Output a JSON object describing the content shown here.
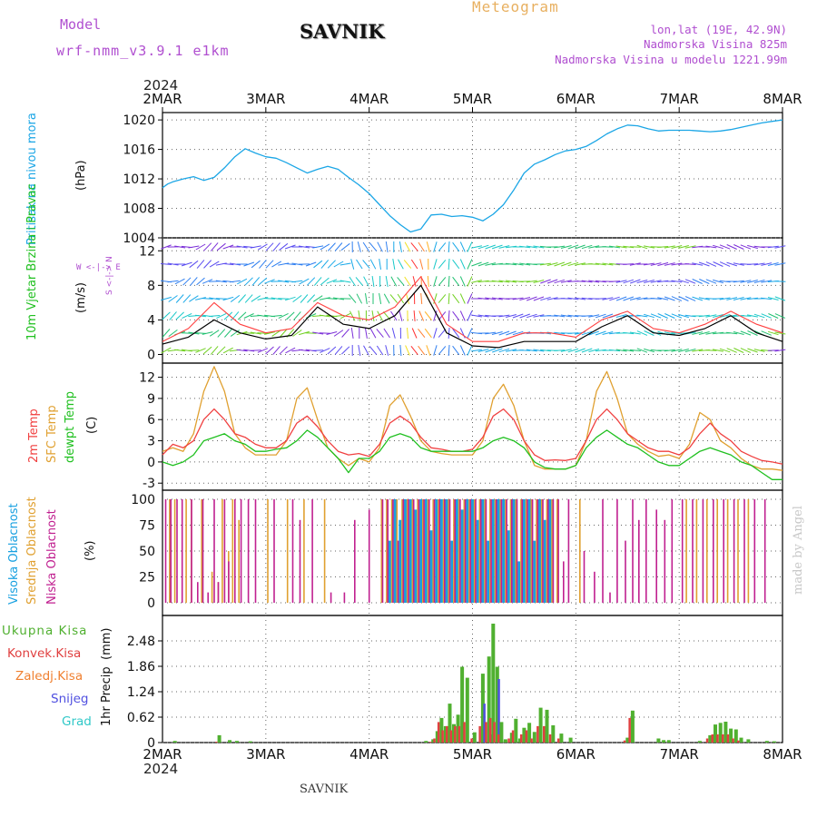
{
  "header": {
    "model_label": "Model",
    "model_name": "wrf-nmm_v3.9.1 e1km",
    "station": "SAVNIK",
    "product": "Meteogram",
    "coords": "lon,lat (19E, 42.9N)",
    "elevation": "Nadmorska Visina 825m",
    "model_elevation": "Nadmorska Visina u modelu 1221.99m"
  },
  "footer": {
    "station": "SAVNIK",
    "credit": "made by Angel"
  },
  "colors": {
    "pressure": "#1ba6e6",
    "temp2m": "#f04040",
    "sfc": "#e0a030",
    "dewpt": "#20c020",
    "cloud_high": "#18a0e0",
    "cloud_mid": "#e0a030",
    "cloud_low": "#c02090",
    "precip_total": "#50b030",
    "precip_conv": "#e04040",
    "precip_snow": "#5050e0",
    "wind_speed": "#000000",
    "gust": "#ff4040"
  },
  "time_axis": {
    "year": "2024",
    "days": [
      "2MAR",
      "3MAR",
      "4MAR",
      "5MAR",
      "6MAR",
      "7MAR",
      "8MAR"
    ]
  },
  "chart_data": [
    {
      "panel": "pressure",
      "type": "line",
      "ylabel": "Pritisak na nivou mora",
      "unit": "(hPa)",
      "ylim": [
        1004,
        1021
      ],
      "yticks": [
        "1004",
        "1008",
        "1012",
        "1016",
        "1020"
      ],
      "x_days": [
        0,
        0.05,
        0.1,
        0.2,
        0.3,
        0.4,
        0.5,
        0.6,
        0.7,
        0.8,
        0.9,
        1.0,
        1.1,
        1.2,
        1.3,
        1.4,
        1.5,
        1.6,
        1.7,
        1.8,
        1.9,
        2.0,
        2.1,
        2.2,
        2.3,
        2.4,
        2.5,
        2.6,
        2.7,
        2.8,
        2.9,
        3.0,
        3.1,
        3.2,
        3.3,
        3.4,
        3.5,
        3.6,
        3.7,
        3.8,
        3.9,
        4.0,
        4.1,
        4.2,
        4.3,
        4.4,
        4.5,
        4.6,
        4.7,
        4.8,
        4.9,
        5.0,
        5.1,
        5.2,
        5.3,
        5.4,
        5.5,
        5.6,
        5.7,
        5.8,
        5.9,
        6.0
      ],
      "series": [
        {
          "name": "pressure",
          "values": [
            1010.8,
            1011.3,
            1011.6,
            1012.0,
            1012.3,
            1011.8,
            1012.2,
            1013.5,
            1015.0,
            1016.1,
            1015.5,
            1015.0,
            1014.8,
            1014.2,
            1013.5,
            1012.8,
            1013.3,
            1013.7,
            1013.3,
            1012.2,
            1011.2,
            1010.0,
            1008.5,
            1007.0,
            1005.8,
            1004.8,
            1005.2,
            1007.1,
            1007.2,
            1006.9,
            1007.0,
            1006.8,
            1006.3,
            1007.2,
            1008.5,
            1010.5,
            1012.8,
            1014.0,
            1014.6,
            1015.3,
            1015.8,
            1016.0,
            1016.4,
            1017.2,
            1018.1,
            1018.8,
            1019.3,
            1019.2,
            1018.8,
            1018.5,
            1018.6,
            1018.6,
            1018.6,
            1018.5,
            1018.4,
            1018.5,
            1018.7,
            1019.0,
            1019.3,
            1019.6,
            1019.8,
            1020.0
          ]
        }
      ]
    },
    {
      "panel": "wind",
      "type": "line",
      "ylabel": "10m Vjetar Brzina i Pravac",
      "unit": "(m/s)",
      "compass": "W <-|-> E",
      "compass_ns": "S <-|-> N",
      "ylim": [
        -1,
        13.5
      ],
      "yticks": [
        "0",
        "4",
        "8",
        "12"
      ],
      "x_days": [
        0,
        0.25,
        0.5,
        0.75,
        1,
        1.25,
        1.5,
        1.75,
        2,
        2.25,
        2.5,
        2.75,
        3,
        3.25,
        3.5,
        3.75,
        4,
        4.25,
        4.5,
        4.75,
        5,
        5.25,
        5.5,
        5.75,
        6
      ],
      "series": [
        {
          "name": "speed",
          "values": [
            1.2,
            2.0,
            4.0,
            2.5,
            1.8,
            2.2,
            5.5,
            3.5,
            3.0,
            4.5,
            8.0,
            2.5,
            1.0,
            0.8,
            1.5,
            1.5,
            1.5,
            3.2,
            4.5,
            2.5,
            2.2,
            3.0,
            4.5,
            2.5,
            1.5
          ]
        },
        {
          "name": "gust",
          "values": [
            1.5,
            3.0,
            6.0,
            3.5,
            2.5,
            3.0,
            6.0,
            4.5,
            4.0,
            5.5,
            9.0,
            3.5,
            1.5,
            1.5,
            2.5,
            2.5,
            2.0,
            4.0,
            5.0,
            3.0,
            2.5,
            3.5,
            5.0,
            3.5,
            2.5
          ]
        }
      ]
    },
    {
      "panel": "temperature",
      "type": "line",
      "ylabel_2m": "2m Temp",
      "ylabel_sfc": "SFC Temp",
      "ylabel_dew": "dewpt Temp",
      "unit": "(C)",
      "ylim": [
        -4,
        14
      ],
      "yticks": [
        "-3",
        "0",
        "3",
        "6",
        "9",
        "12"
      ],
      "x_days": [
        0,
        0.1,
        0.2,
        0.3,
        0.4,
        0.5,
        0.6,
        0.7,
        0.8,
        0.9,
        1.0,
        1.1,
        1.2,
        1.3,
        1.4,
        1.5,
        1.6,
        1.7,
        1.8,
        1.9,
        2.0,
        2.1,
        2.2,
        2.3,
        2.4,
        2.5,
        2.6,
        2.7,
        2.8,
        2.9,
        3.0,
        3.1,
        3.2,
        3.3,
        3.4,
        3.5,
        3.6,
        3.7,
        3.8,
        3.9,
        4.0,
        4.1,
        4.2,
        4.3,
        4.4,
        4.5,
        4.6,
        4.7,
        4.8,
        4.9,
        5.0,
        5.1,
        5.2,
        5.3,
        5.4,
        5.5,
        5.6,
        5.7,
        5.8,
        5.9,
        6.0
      ],
      "series": [
        {
          "name": "2m Temp",
          "values": [
            1.0,
            2.5,
            2.0,
            3.0,
            6.0,
            7.5,
            6.0,
            4.0,
            3.5,
            2.5,
            2.0,
            2.0,
            3.0,
            5.5,
            6.5,
            5.0,
            3.0,
            1.5,
            1.0,
            1.2,
            0.8,
            2.5,
            5.5,
            6.5,
            5.5,
            3.5,
            2.0,
            1.8,
            1.5,
            1.5,
            1.8,
            3.5,
            6.5,
            7.5,
            6.0,
            3.0,
            1.0,
            0.2,
            0.3,
            0.2,
            0.5,
            3.0,
            6.0,
            7.5,
            6.0,
            4.0,
            3.0,
            2.0,
            1.5,
            1.5,
            1.0,
            2.0,
            4.0,
            5.5,
            4.0,
            3.0,
            1.5,
            0.8,
            0.2,
            0.0,
            -0.3
          ]
        },
        {
          "name": "SFC Temp",
          "values": [
            1.5,
            2.0,
            1.5,
            4.0,
            10.0,
            13.5,
            10.0,
            4.0,
            2.0,
            1.0,
            1.0,
            1.0,
            3.0,
            9.0,
            10.5,
            6.0,
            2.0,
            0.5,
            -0.5,
            0.5,
            0.0,
            2.0,
            8.0,
            9.5,
            6.5,
            3.0,
            1.5,
            1.2,
            1.0,
            1.0,
            1.0,
            3.0,
            9.0,
            11.0,
            8.0,
            3.0,
            -0.5,
            -1.0,
            -1.0,
            -1.0,
            -0.5,
            3.0,
            10.0,
            12.8,
            9.0,
            4.0,
            2.5,
            1.5,
            0.8,
            1.0,
            0.5,
            2.5,
            7.0,
            6.0,
            3.0,
            2.0,
            0.5,
            -0.5,
            -1.0,
            -1.0,
            -1.2
          ]
        },
        {
          "name": "dewpt Temp",
          "values": [
            0.0,
            -0.5,
            0.0,
            1.0,
            3.0,
            3.5,
            4.0,
            3.0,
            2.5,
            1.5,
            1.5,
            1.8,
            2.0,
            3.0,
            4.5,
            3.5,
            2.0,
            0.5,
            -1.5,
            0.5,
            0.5,
            1.5,
            3.5,
            4.0,
            3.5,
            2.0,
            1.5,
            1.5,
            1.5,
            1.5,
            1.5,
            2.0,
            3.0,
            3.5,
            3.0,
            2.0,
            0.0,
            -0.8,
            -1.0,
            -1.0,
            -0.5,
            2.0,
            3.5,
            4.5,
            3.5,
            2.5,
            2.0,
            1.0,
            0.0,
            -0.5,
            -0.5,
            0.5,
            1.5,
            2.0,
            1.5,
            1.0,
            0.0,
            -0.5,
            -1.5,
            -2.5,
            -2.5
          ]
        }
      ]
    },
    {
      "panel": "clouds",
      "type": "bar",
      "ylabel_high": "Visoka Oblacnost",
      "ylabel_mid": "Srednja Oblacnost",
      "ylabel_low": "Niska Oblacnost",
      "unit": "(%)",
      "ylim": [
        0,
        100
      ],
      "yticks": [
        "0",
        "25",
        "50",
        "75",
        "100"
      ],
      "x_days": [
        0.05,
        0.1,
        0.16,
        0.21,
        0.26,
        0.3,
        0.36,
        0.41,
        0.46,
        0.52,
        0.56,
        0.62,
        0.66,
        0.72,
        0.78,
        0.85,
        0.92,
        1.0,
        1.1,
        1.19,
        1.28,
        1.35,
        1.47,
        1.55,
        1.65,
        1.78,
        1.88,
        2.02,
        2.1,
        2.15,
        2.2,
        2.25,
        2.3,
        2.35,
        2.4,
        2.45,
        2.5,
        2.55,
        2.6,
        2.65,
        2.7,
        2.75,
        2.8,
        2.85,
        2.9,
        2.95,
        3.0,
        3.05,
        3.1,
        3.15,
        3.2,
        3.25,
        3.3,
        3.35,
        3.4,
        3.45,
        3.5,
        3.55,
        3.6,
        3.65,
        3.7,
        3.75,
        3.8,
        3.85,
        3.9,
        3.95,
        4.02,
        4.1,
        4.2,
        4.28,
        4.35,
        4.42,
        4.5,
        4.57,
        4.63,
        4.7,
        4.8,
        4.88,
        4.95,
        5.05,
        5.15,
        5.25,
        5.35,
        5.45,
        5.55,
        5.65,
        5.75,
        5.85,
        5.95
      ],
      "series": [
        {
          "name": "high",
          "values": [
            0,
            0,
            0,
            0,
            0,
            0,
            0,
            0,
            0,
            0,
            0,
            0,
            0,
            0,
            0,
            0,
            0,
            0,
            0,
            0,
            0,
            0,
            0,
            0,
            0,
            0,
            0,
            0,
            0,
            0,
            60,
            100,
            80,
            100,
            100,
            90,
            100,
            100,
            70,
            100,
            100,
            100,
            60,
            100,
            90,
            100,
            100,
            80,
            100,
            60,
            100,
            100,
            100,
            70,
            100,
            40,
            100,
            100,
            60,
            100,
            80,
            100,
            0,
            0,
            0,
            0,
            0,
            0,
            0,
            0,
            0,
            0,
            0,
            0,
            0,
            0,
            0,
            0,
            0,
            0,
            0,
            0,
            0,
            0,
            0,
            0,
            0,
            0,
            0
          ]
        },
        {
          "name": "mid",
          "values": [
            100,
            100,
            0,
            100,
            100,
            0,
            100,
            0,
            30,
            20,
            100,
            50,
            100,
            80,
            0,
            0,
            0,
            100,
            0,
            100,
            0,
            100,
            0,
            100,
            0,
            0,
            0,
            0,
            100,
            100,
            100,
            100,
            100,
            100,
            100,
            100,
            100,
            100,
            100,
            100,
            100,
            100,
            100,
            100,
            100,
            100,
            100,
            100,
            100,
            100,
            100,
            100,
            100,
            100,
            100,
            100,
            100,
            100,
            100,
            100,
            100,
            100,
            100,
            0,
            0,
            0,
            100,
            0,
            0,
            0,
            0,
            0,
            0,
            0,
            0,
            0,
            0,
            0,
            0,
            100,
            100,
            100,
            100,
            100,
            100,
            100,
            0,
            0,
            0
          ]
        },
        {
          "name": "low",
          "values": [
            100,
            100,
            100,
            100,
            0,
            100,
            20,
            100,
            10,
            100,
            20,
            100,
            40,
            100,
            100,
            100,
            100,
            0,
            100,
            0,
            100,
            80,
            100,
            0,
            10,
            10,
            80,
            90,
            0,
            100,
            100,
            100,
            60,
            100,
            100,
            100,
            100,
            100,
            100,
            100,
            100,
            100,
            100,
            100,
            100,
            100,
            100,
            100,
            100,
            100,
            100,
            100,
            100,
            100,
            100,
            100,
            100,
            100,
            100,
            100,
            100,
            100,
            100,
            100,
            40,
            100,
            0,
            50,
            30,
            100,
            10,
            100,
            60,
            100,
            80,
            100,
            90,
            80,
            100,
            100,
            100,
            100,
            100,
            100,
            100,
            100,
            100,
            100,
            0
          ]
        }
      ]
    },
    {
      "panel": "precipitation",
      "type": "bar",
      "ylabel": "1hr Precip",
      "unit": "(mm)",
      "legend": [
        "Ukupna Kisa",
        "Konvek.Kisa",
        "Zaledj.Kisa",
        "Snijeg",
        "Grad"
      ],
      "ylim": [
        0,
        3.1
      ],
      "yticks": [
        "0",
        "0.62",
        "1.24",
        "1.86",
        "2.48"
      ],
      "x_days": [
        0.12,
        0.55,
        0.65,
        0.72,
        0.85,
        2.55,
        2.62,
        2.66,
        2.7,
        2.74,
        2.78,
        2.82,
        2.86,
        2.9,
        2.95,
        3.02,
        3.1,
        3.16,
        3.2,
        3.24,
        3.28,
        3.32,
        3.38,
        3.42,
        3.46,
        3.5,
        3.55,
        3.6,
        3.66,
        3.72,
        3.78,
        3.86,
        3.95,
        4.5,
        4.55,
        4.8,
        4.85,
        4.9,
        5.2,
        5.3,
        5.35,
        5.4,
        5.45,
        5.5,
        5.55,
        5.6,
        5.67,
        5.85,
        5.92
      ],
      "series": [
        {
          "name": "Ukupna Kisa",
          "values": [
            0.04,
            0.18,
            0.06,
            0.04,
            0.03,
            0.04,
            0.08,
            0.28,
            0.6,
            0.4,
            0.95,
            0.45,
            0.68,
            1.85,
            1.58,
            0.25,
            1.68,
            2.1,
            2.9,
            1.85,
            0.5,
            0.08,
            0.24,
            0.58,
            0.1,
            0.36,
            0.48,
            0.26,
            0.85,
            0.8,
            0.42,
            0.22,
            0.12,
            0.12,
            0.78,
            0.1,
            0.06,
            0.06,
            0.04,
            0.18,
            0.44,
            0.48,
            0.51,
            0.34,
            0.32,
            0.12,
            0.08,
            0.04,
            0.03
          ]
        },
        {
          "name": "Konvek.Kisa",
          "values": [
            0.0,
            0.02,
            0.0,
            0.0,
            0.0,
            0.0,
            0.02,
            0.1,
            0.5,
            0.3,
            0.4,
            0.3,
            0.4,
            0.4,
            0.5,
            0.1,
            0.4,
            0.5,
            0.6,
            0.5,
            0.2,
            0.0,
            0.1,
            0.3,
            0.0,
            0.2,
            0.3,
            0.1,
            0.4,
            0.4,
            0.2,
            0.1,
            0.0,
            0.05,
            0.6,
            0.0,
            0.0,
            0.0,
            0.0,
            0.1,
            0.2,
            0.2,
            0.2,
            0.2,
            0.1,
            0.05,
            0.0,
            0.0,
            0.0
          ]
        },
        {
          "name": "Snijeg",
          "values": [
            0,
            0,
            0,
            0,
            0,
            0,
            0,
            0,
            0,
            0,
            0,
            0,
            0,
            0,
            0,
            0,
            0.95,
            0.2,
            0,
            1.55,
            0,
            0,
            0,
            0,
            0,
            0,
            0,
            0,
            0,
            0,
            0,
            0,
            0,
            0,
            0,
            0,
            0,
            0,
            0,
            0,
            0,
            0,
            0,
            0,
            0,
            0,
            0,
            0,
            0
          ]
        }
      ]
    }
  ]
}
